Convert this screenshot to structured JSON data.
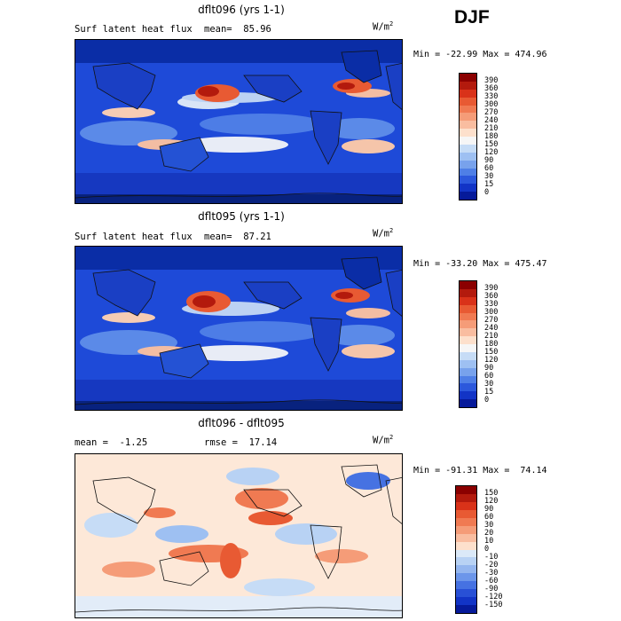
{
  "season": "DJF",
  "panels": [
    {
      "title": "dflt096 (yrs 1-1)",
      "info_left": "Surf latent heat flux",
      "info_right": "mean=  85.96",
      "units": "W/m",
      "units_exp": "2",
      "minmax": "Min = -22.99 Max = 474.96",
      "colorbar": {
        "labels": [
          "390",
          "360",
          "330",
          "300",
          "270",
          "240",
          "210",
          "180",
          "150",
          "120",
          "90",
          "60",
          "30",
          "15",
          "0"
        ],
        "colors": [
          "#8b0000",
          "#b31a0d",
          "#d93219",
          "#e85a33",
          "#f07a52",
          "#f59c78",
          "#f9bda0",
          "#fde0cc",
          "#f6f6f6",
          "#c6dcf6",
          "#9ec0f2",
          "#78a2ec",
          "#4f7fe6",
          "#2c58dc",
          "#1234c6",
          "#061a9a"
        ]
      }
    },
    {
      "title": "dflt095 (yrs 1-1)",
      "info_left": "Surf latent heat flux",
      "info_right": "mean=  87.21",
      "units": "W/m",
      "units_exp": "2",
      "minmax": "Min = -33.20 Max = 475.47",
      "colorbar": {
        "labels": [
          "390",
          "360",
          "330",
          "300",
          "270",
          "240",
          "210",
          "180",
          "150",
          "120",
          "90",
          "60",
          "30",
          "15",
          "0"
        ],
        "colors": [
          "#8b0000",
          "#b31a0d",
          "#d93219",
          "#e85a33",
          "#f07a52",
          "#f59c78",
          "#f9bda0",
          "#fde0cc",
          "#f6f6f6",
          "#c6dcf6",
          "#9ec0f2",
          "#78a2ec",
          "#4f7fe6",
          "#2c58dc",
          "#1234c6",
          "#061a9a"
        ]
      }
    },
    {
      "title": "dflt096 - dflt095",
      "info_left": "mean =  -1.25",
      "info_right": "rmse =  17.14",
      "units": "W/m",
      "units_exp": "2",
      "minmax": "Min = -91.31 Max =  74.14",
      "colorbar": {
        "labels": [
          "150",
          "120",
          "90",
          "60",
          "30",
          "20",
          "10",
          "0",
          "-10",
          "-20",
          "-30",
          "-60",
          "-90",
          "-120",
          "-150"
        ],
        "colors": [
          "#8b0000",
          "#b31a0d",
          "#d93219",
          "#e85a33",
          "#f07a52",
          "#f59c78",
          "#f9bda0",
          "#fde0cc",
          "#dbe9f8",
          "#b8d2f4",
          "#94b6ef",
          "#6c96ea",
          "#4672e2",
          "#2850d6",
          "#1234c6",
          "#061a9a"
        ]
      }
    }
  ]
}
